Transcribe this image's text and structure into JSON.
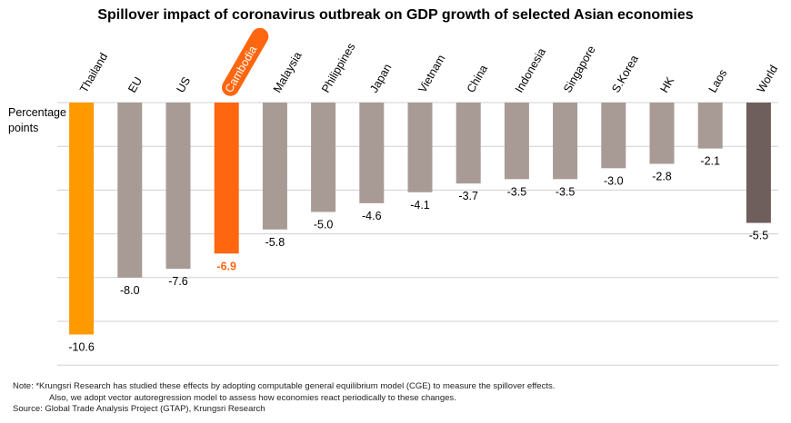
{
  "title": "Spillover impact of coronavirus outbreak on GDP growth of selected Asian economies",
  "note_line1": "Note: *Krungsri Research has studied these effects by adopting computable general equilibrium model (CGE) to measure the spillover effects.",
  "note_line2": "Also, we adopt vector autoregression model to assess how economies react periodically to these changes.",
  "source": "Source: Global Trade Analysis Project (GTAP), Krungsri Research",
  "colors": {
    "thailand": "#FF9900",
    "cambodia": "#FF6610",
    "default": "#A89B96",
    "world": "#6E5E5C",
    "grid": "#D0D0D0"
  },
  "chart_data": {
    "type": "bar",
    "title": "Spillover impact of coronavirus outbreak on GDP growth of selected Asian economies",
    "xlabel": "",
    "ylabel": "Percentage points",
    "ylim": [
      -12,
      0
    ],
    "grid": true,
    "highlighted_category": "Cambodia",
    "categories": [
      "Thailand",
      "EU",
      "US",
      "Cambodia",
      "Malaysia",
      "Philippines",
      "Japan",
      "Vietnam",
      "China",
      "Indonesia",
      "Singapore",
      "S.Korea",
      "HK",
      "Laos",
      "World"
    ],
    "values": [
      -10.6,
      -8.0,
      -7.6,
      -6.9,
      -5.8,
      -5.0,
      -4.6,
      -4.1,
      -3.7,
      -3.5,
      -3.5,
      -3.0,
      -2.8,
      -2.1,
      -5.5
    ],
    "value_labels": [
      "-10.6",
      "-8.0",
      "-7.6",
      "-6.9",
      "-5.8",
      "-5.0",
      "-4.6",
      "-4.1",
      "-3.7",
      "-3.5",
      "-3.5",
      "-3.0",
      "-2.8",
      "-2.1",
      "-5.5"
    ]
  }
}
